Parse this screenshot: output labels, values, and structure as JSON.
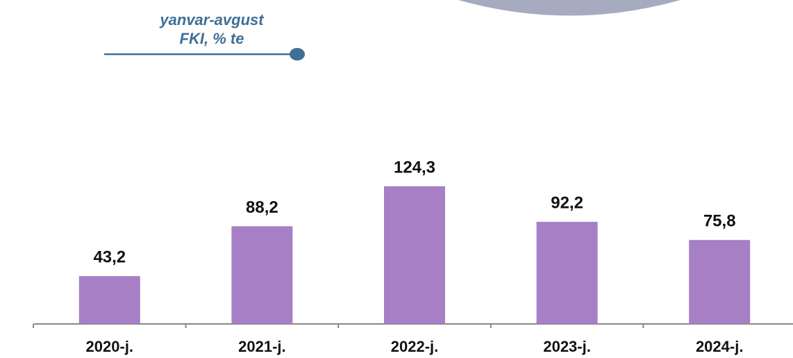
{
  "chart_data": {
    "type": "bar",
    "legend_title": [
      "yanvar-avgust",
      "FKI, % te"
    ],
    "categories": [
      "2020-j.",
      "2021-j.",
      "2022-j.",
      "2023-j.",
      "2024-j."
    ],
    "values": [
      43.2,
      88.2,
      124.3,
      92.2,
      75.8
    ],
    "value_labels": [
      "43,2",
      "88,2",
      "124,3",
      "92,2",
      "75,8"
    ],
    "color": "#a67fc4"
  }
}
